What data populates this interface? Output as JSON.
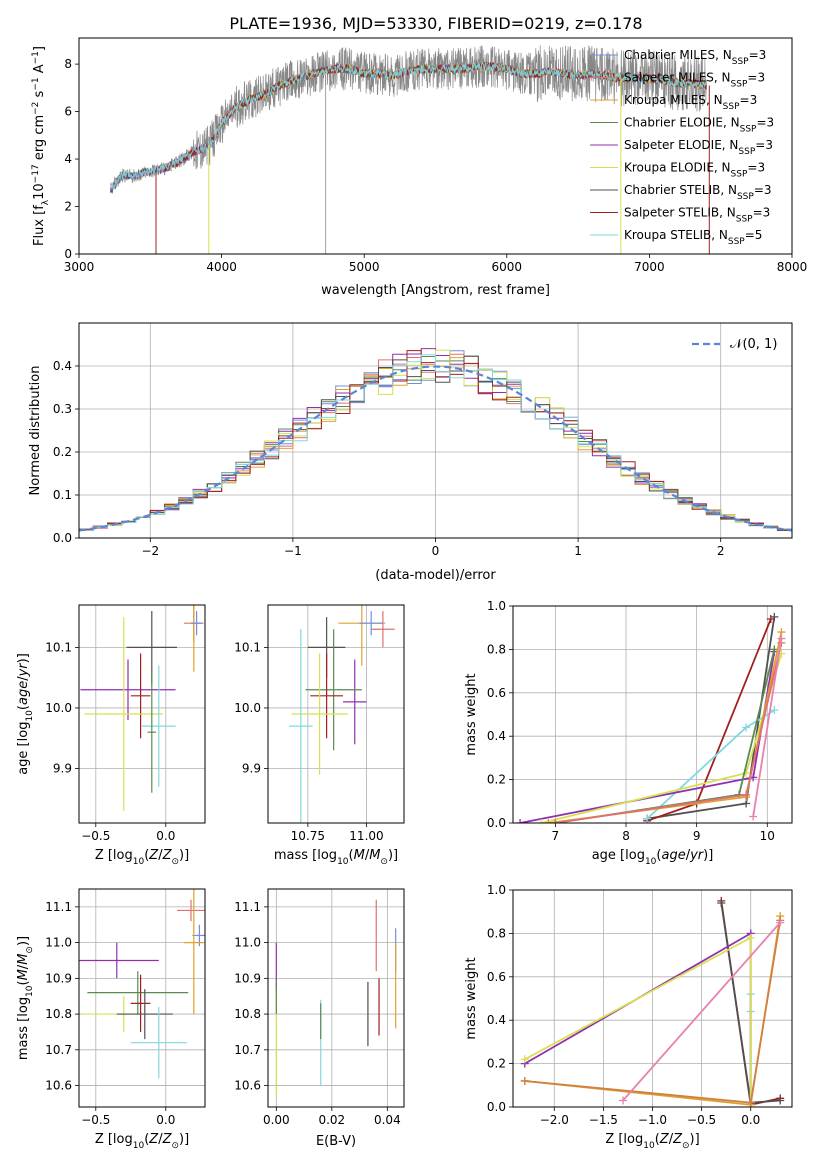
{
  "figure_title": "PLATE=1936, MJD=53330, FIBERID=0219, z=0.178",
  "colors": {
    "Chabrier MILES": "#6f8fe0",
    "Salpeter MILES": "#e07070",
    "Kroupa MILES": "#e0a030",
    "Chabrier ELODIE": "#5a8a50",
    "Salpeter ELODIE": "#9030b0",
    "Kroupa ELODIE": "#d8e050",
    "Chabrier STELIB": "#505050",
    "Salpeter STELIB": "#a02020",
    "Kroupa STELIB": "#80d8e0",
    "data": "#888888",
    "pink": "#e880b0",
    "orange": "#d08040"
  },
  "chart_data": [
    {
      "id": "spectrum",
      "type": "line",
      "title": "PLATE=1936, MJD=53330, FIBERID=0219, z=0.178",
      "xlabel": "wavelength [Angstrom, rest frame]",
      "ylabel": "Flux [f_λ 10^{-17} erg cm^{-2} s^{-1} A^{-1}]",
      "xlim": [
        3000,
        8000
      ],
      "ylim": [
        0,
        9.1
      ],
      "xticks": [
        "3000",
        "4000",
        "5000",
        "6000",
        "7000",
        "8000"
      ],
      "yticks": [
        "0",
        "2",
        "4",
        "6",
        "8"
      ],
      "legend_position": "top-right",
      "grid": false,
      "flux_shape": {
        "x": [
          3220,
          3300,
          3400,
          3500,
          3600,
          3700,
          3800,
          3900,
          3950,
          4000,
          4100,
          4200,
          4300,
          4400,
          4500,
          4600,
          4700,
          4800,
          4900,
          5000,
          5100,
          5200,
          5300,
          5400,
          5500,
          5600,
          5700,
          5800,
          5900,
          6000,
          6100,
          6200,
          6300,
          6400,
          6500,
          6600,
          6700,
          6800,
          6900,
          7000,
          7100,
          7200,
          7300,
          7400
        ],
        "y": [
          2.7,
          3.3,
          3.3,
          3.5,
          3.6,
          3.9,
          4.3,
          4.5,
          4.9,
          5.5,
          6.2,
          6.5,
          6.7,
          7.1,
          7.3,
          7.5,
          7.7,
          7.8,
          7.8,
          7.6,
          7.6,
          7.5,
          7.7,
          7.8,
          7.8,
          7.8,
          7.8,
          7.9,
          7.9,
          7.8,
          7.6,
          7.6,
          7.7,
          7.6,
          7.5,
          7.6,
          7.5,
          7.4,
          7.4,
          7.4,
          7.3,
          7.2,
          7.2,
          7.1
        ]
      },
      "series": [
        {
          "name": "Chabrier MILES, N_SSP=3"
        },
        {
          "name": "Salpeter MILES, N_SSP=3"
        },
        {
          "name": "Kroupa MILES, N_SSP=3"
        },
        {
          "name": "Chabrier ELODIE, N_SSP=3"
        },
        {
          "name": "Salpeter ELODIE, N_SSP=3"
        },
        {
          "name": "Kroupa ELODIE, N_SSP=3"
        },
        {
          "name": "Chabrier STELIB, N_SSP=3"
        },
        {
          "name": "Salpeter STELIB, N_SSP=3"
        },
        {
          "name": "Kroupa STELIB, N_SSP=5"
        }
      ]
    },
    {
      "id": "residuals",
      "type": "line",
      "xlabel": "(data-model)/error",
      "ylabel": "Normed distribution",
      "xlim": [
        -2.5,
        2.5
      ],
      "ylim": [
        0,
        0.5
      ],
      "xticks": [
        "−2",
        "−1",
        "0",
        "1",
        "2"
      ],
      "yticks": [
        "0.0",
        "0.1",
        "0.2",
        "0.3",
        "0.4"
      ],
      "grid": true,
      "legend_position": "top-right",
      "gaussian_label": "𝒩(0, 1)",
      "bins": {
        "start": -2.5,
        "width": 0.1,
        "count": 50
      }
    },
    {
      "id": "age_vs_Z",
      "type": "scatter",
      "xlabel": "Z [log10(Z/Z⊙)]",
      "ylabel": "age  [log10(age/yr)]",
      "xlim": [
        -0.62,
        0.28
      ],
      "ylim": [
        9.81,
        10.17
      ],
      "xticks": [
        "−0.5",
        "0.0"
      ],
      "yticks": [
        "9.9",
        "10.0",
        "10.1"
      ],
      "grid": true,
      "points": [
        {
          "series": "Salpeter MILES",
          "x": 0.2,
          "y": 10.14,
          "xerr": 0.07,
          "yerr": 0.03
        },
        {
          "series": "Kroupa MILES",
          "x": 0.2,
          "y": 10.14,
          "xerr": 0.05,
          "yerr": 0.08
        },
        {
          "series": "Chabrier MILES",
          "x": 0.22,
          "y": 10.14,
          "xerr": 0.04,
          "yerr": 0.02
        },
        {
          "series": "Chabrier STELIB",
          "x": -0.1,
          "y": 10.1,
          "xerr": 0.18,
          "yerr": 0.06
        },
        {
          "series": "Salpeter ELODIE",
          "x": -0.27,
          "y": 10.03,
          "xerr": 0.34,
          "yerr": 0.05
        },
        {
          "series": "Salpeter STELIB",
          "x": -0.18,
          "y": 10.02,
          "xerr": 0.07,
          "yerr": 0.07
        },
        {
          "series": "Kroupa ELODIE",
          "x": -0.3,
          "y": 9.99,
          "xerr": 0.28,
          "yerr": 0.16
        },
        {
          "series": "Kroupa STELIB",
          "x": -0.05,
          "y": 9.97,
          "xerr": 0.12,
          "yerr": 0.1
        },
        {
          "series": "Chabrier ELODIE",
          "x": -0.1,
          "y": 9.96,
          "xerr": 0.03,
          "yerr": 0.1
        }
      ]
    },
    {
      "id": "age_vs_mass",
      "type": "scatter",
      "xlabel": "mass [log10(M/M⊙)]",
      "ylabel": "",
      "xlim": [
        10.58,
        11.16
      ],
      "ylim": [
        9.81,
        10.17
      ],
      "xticks": [
        "10.75",
        "11.00"
      ],
      "yticks": [
        "9.9",
        "10.0",
        "10.1"
      ],
      "grid": true,
      "points": [
        {
          "series": "Salpeter MILES",
          "x": 11.07,
          "y": 10.13,
          "xerr": 0.05,
          "yerr": 0.03
        },
        {
          "series": "Kroupa MILES",
          "x": 10.98,
          "y": 10.14,
          "xerr": 0.1,
          "yerr": 0.07
        },
        {
          "series": "Chabrier MILES",
          "x": 11.02,
          "y": 10.14,
          "xerr": 0.05,
          "yerr": 0.02
        },
        {
          "series": "Chabrier STELIB",
          "x": 10.83,
          "y": 10.1,
          "xerr": 0.08,
          "yerr": 0.05
        },
        {
          "series": "Salpeter ELODIE",
          "x": 10.95,
          "y": 10.01,
          "xerr": 0.05,
          "yerr": 0.07
        },
        {
          "series": "Chabrier ELODIE",
          "x": 10.86,
          "y": 10.03,
          "xerr": 0.12,
          "yerr": 0.1
        },
        {
          "series": "Salpeter STELIB",
          "x": 10.83,
          "y": 10.02,
          "xerr": 0.07,
          "yerr": 0.07
        },
        {
          "series": "Kroupa ELODIE",
          "x": 10.8,
          "y": 9.99,
          "xerr": 0.12,
          "yerr": 0.1
        },
        {
          "series": "Kroupa STELIB",
          "x": 10.72,
          "y": 9.97,
          "xerr": 0.05,
          "yerr": 0.16
        }
      ]
    },
    {
      "id": "massweight_vs_age",
      "type": "line",
      "xlabel": "age  [log10(age/yr)]",
      "ylabel": "mass weight",
      "xlim": [
        6.4,
        10.35
      ],
      "ylim": [
        0,
        1
      ],
      "xticks": [
        "7",
        "8",
        "9",
        "10"
      ],
      "yticks": [
        "0.0",
        "0.2",
        "0.4",
        "0.6",
        "0.8",
        "1.0"
      ],
      "grid": true,
      "series": [
        {
          "name": "Chabrier STELIB",
          "x": [
            8.3,
            9.7,
            10.1
          ],
          "y": [
            0.02,
            0.09,
            0.95
          ]
        },
        {
          "name": "Salpeter STELIB",
          "x": [
            8.3,
            9.0,
            10.05
          ],
          "y": [
            0.01,
            0.09,
            0.94
          ]
        },
        {
          "name": "Kroupa STELIB",
          "x": [
            8.3,
            9.7,
            10.1
          ],
          "y": [
            0.02,
            0.44,
            0.52
          ]
        },
        {
          "name": "Salpeter ELODIE",
          "x": [
            6.5,
            9.8,
            10.1
          ],
          "y": [
            0.0,
            0.21,
            0.79
          ]
        },
        {
          "name": "Kroupa ELODIE",
          "x": [
            6.8,
            9.7,
            10.2
          ],
          "y": [
            0.0,
            0.23,
            0.78
          ]
        },
        {
          "name": "Chabrier ELODIE",
          "x": [
            7.0,
            9.6,
            10.1
          ],
          "y": [
            0.0,
            0.13,
            0.8
          ]
        },
        {
          "name": "Kroupa MILES",
          "x": [
            6.9,
            9.7,
            10.2
          ],
          "y": [
            0.0,
            0.12,
            0.88
          ]
        },
        {
          "name": "Salpeter MILES",
          "x": [
            7.0,
            9.7,
            10.2
          ],
          "y": [
            0.0,
            0.13,
            0.83
          ]
        },
        {
          "name": "pink",
          "x": [
            9.8,
            10.2
          ],
          "y": [
            0.03,
            0.85
          ]
        }
      ]
    },
    {
      "id": "mass_vs_Z",
      "type": "scatter",
      "xlabel": "Z [log10(Z/Z⊙)]",
      "ylabel": "mass [log10(M/M⊙)]",
      "xlim": [
        -0.62,
        0.28
      ],
      "ylim": [
        10.54,
        11.15
      ],
      "xticks": [
        "−0.5",
        "0.0"
      ],
      "yticks": [
        "10.6",
        "10.7",
        "10.8",
        "10.9",
        "11.0",
        "11.1"
      ],
      "grid": true,
      "points": [
        {
          "series": "Salpeter MILES",
          "x": 0.18,
          "y": 11.09,
          "xerr": 0.1,
          "yerr": 0.03
        },
        {
          "series": "Chabrier MILES",
          "x": 0.24,
          "y": 11.02,
          "xerr": 0.05,
          "yerr": 0.03
        },
        {
          "series": "Kroupa MILES",
          "x": 0.2,
          "y": 11.0,
          "xerr": 0.07,
          "yerr": 0.2
        },
        {
          "series": "Salpeter ELODIE",
          "x": -0.35,
          "y": 10.95,
          "xerr": 0.3,
          "yerr": 0.05
        },
        {
          "series": "Chabrier ELODIE",
          "x": -0.2,
          "y": 10.86,
          "xerr": 0.36,
          "yerr": 0.06
        },
        {
          "series": "Salpeter STELIB",
          "x": -0.18,
          "y": 10.83,
          "xerr": 0.07,
          "yerr": 0.08
        },
        {
          "series": "Kroupa ELODIE",
          "x": -0.3,
          "y": 10.8,
          "xerr": 0.3,
          "yerr": 0.05
        },
        {
          "series": "Chabrier STELIB",
          "x": -0.15,
          "y": 10.8,
          "xerr": 0.2,
          "yerr": 0.07
        },
        {
          "series": "Kroupa STELIB",
          "x": -0.05,
          "y": 10.72,
          "xerr": 0.2,
          "yerr": 0.1
        }
      ]
    },
    {
      "id": "mass_vs_ebv",
      "type": "scatter",
      "xlabel": "E(B-V)",
      "ylabel": "",
      "xlim": [
        -0.003,
        0.046
      ],
      "ylim": [
        10.54,
        11.15
      ],
      "xticks": [
        "0.00",
        "0.02",
        "0.04"
      ],
      "yticks": [
        "10.6",
        "10.7",
        "10.8",
        "10.9",
        "11.0",
        "11.1"
      ],
      "grid": true,
      "points": [
        {
          "series": "Salpeter ELODIE",
          "x": 0.0,
          "y": 10.93,
          "yerr": 0.07
        },
        {
          "series": "Kroupa ELODIE",
          "x": 0.0,
          "y": 10.72,
          "yerr": 0.15
        },
        {
          "series": "Chabrier ELODIE",
          "x": 0.0,
          "y": 10.85,
          "yerr": 0.05
        },
        {
          "series": "Kroupa STELIB",
          "x": 0.016,
          "y": 10.72,
          "yerr": 0.12
        },
        {
          "series": "Chabrier ELODIE",
          "x": 0.016,
          "y": 10.78,
          "yerr": 0.05
        },
        {
          "series": "Chabrier STELIB",
          "x": 0.033,
          "y": 10.8,
          "yerr": 0.09
        },
        {
          "series": "Salpeter STELIB",
          "x": 0.037,
          "y": 10.82,
          "yerr": 0.08
        },
        {
          "series": "Salpeter MILES",
          "x": 0.036,
          "y": 11.02,
          "yerr": 0.1
        },
        {
          "series": "Chabrier MILES",
          "x": 0.043,
          "y": 10.98,
          "yerr": 0.06
        },
        {
          "series": "Kroupa MILES",
          "x": 0.043,
          "y": 10.88,
          "yerr": 0.12
        }
      ]
    },
    {
      "id": "massweight_vs_Z",
      "type": "line",
      "xlabel": "Z [log10(Z/Z⊙)]",
      "ylabel": "mass weight",
      "xlim": [
        -2.42,
        0.42
      ],
      "ylim": [
        0,
        1
      ],
      "xticks": [
        "−2.0",
        "−1.5",
        "−1.0",
        "−0.5",
        "0.0"
      ],
      "yticks": [
        "0.0",
        "0.2",
        "0.4",
        "0.6",
        "0.8",
        "1.0"
      ],
      "grid": true,
      "series": [
        {
          "name": "Salpeter STELIB",
          "x": [
            -0.3,
            0.0,
            0.3
          ],
          "y": [
            0.95,
            0.01,
            0.04
          ]
        },
        {
          "name": "Chabrier STELIB",
          "x": [
            -0.3,
            0.0,
            0.3
          ],
          "y": [
            0.94,
            0.02,
            0.03
          ]
        },
        {
          "name": "Kroupa STELIB",
          "x": [
            0.0,
            0.0,
            0.0
          ],
          "y": [
            0.52,
            0.44,
            0.02
          ]
        },
        {
          "name": "Salpeter ELODIE",
          "x": [
            -2.3,
            0.0,
            0.0
          ],
          "y": [
            0.2,
            0.8,
            0.01
          ]
        },
        {
          "name": "Kroupa ELODIE",
          "x": [
            -2.3,
            0.0,
            0.0
          ],
          "y": [
            0.22,
            0.78,
            0.01
          ]
        },
        {
          "name": "Kroupa MILES",
          "x": [
            -2.3,
            0.0,
            0.3
          ],
          "y": [
            0.12,
            0.01,
            0.88
          ]
        },
        {
          "name": "orange",
          "x": [
            -2.3,
            0.0,
            0.3
          ],
          "y": [
            0.12,
            0.02,
            0.86
          ]
        },
        {
          "name": "pink",
          "x": [
            -1.3,
            0.3
          ],
          "y": [
            0.03,
            0.85
          ]
        }
      ]
    }
  ]
}
